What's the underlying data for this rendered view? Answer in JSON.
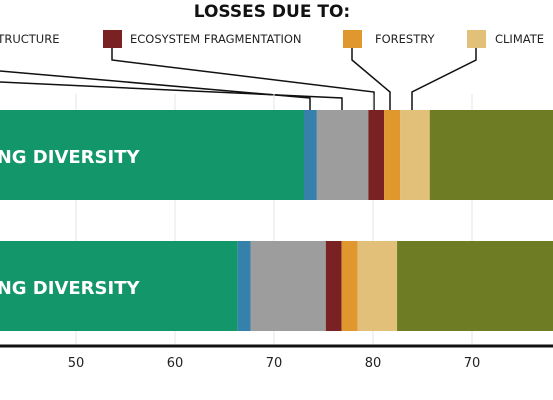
{
  "legend": {
    "title": "LOSSES DUE TO:",
    "items": [
      {
        "label": "STRUCTURE",
        "color": "#9d9d9d"
      },
      {
        "label": "ECOSYSTEM FRAGMENTATION",
        "color": "#7a2223"
      },
      {
        "label": "FORESTRY",
        "color": "#e0972e"
      },
      {
        "label": "CLIMATE",
        "color": "#e2c07a"
      }
    ]
  },
  "chart_data": {
    "type": "bar",
    "orientation": "horizontal",
    "stacked": true,
    "grid": true,
    "x_tick_labels": [
      "50",
      "60",
      "70",
      "80",
      "70"
    ],
    "categories": [
      "ING DIVERSITY",
      "ING DIVERSITY"
    ],
    "series": [
      {
        "color": "#13966a",
        "values": [
          73,
          66.3
        ]
      },
      {
        "color": "#3681ac",
        "values": [
          1.3,
          1.3
        ]
      },
      {
        "name": "STRUCTURE",
        "color": "#9d9d9d",
        "values": [
          5.2,
          7.6
        ]
      },
      {
        "name": "ECOSYSTEM FRAGMENTATION",
        "color": "#7a2223",
        "values": [
          1.6,
          1.6
        ]
      },
      {
        "name": "FORESTRY",
        "color": "#e0972e",
        "values": [
          1.6,
          1.6
        ]
      },
      {
        "name": "CLIMATE",
        "color": "#e2c07a",
        "values": [
          3.0,
          4.0
        ]
      },
      {
        "color": "#6e7d24",
        "values": [
          12.9,
          15.9
        ]
      }
    ]
  }
}
